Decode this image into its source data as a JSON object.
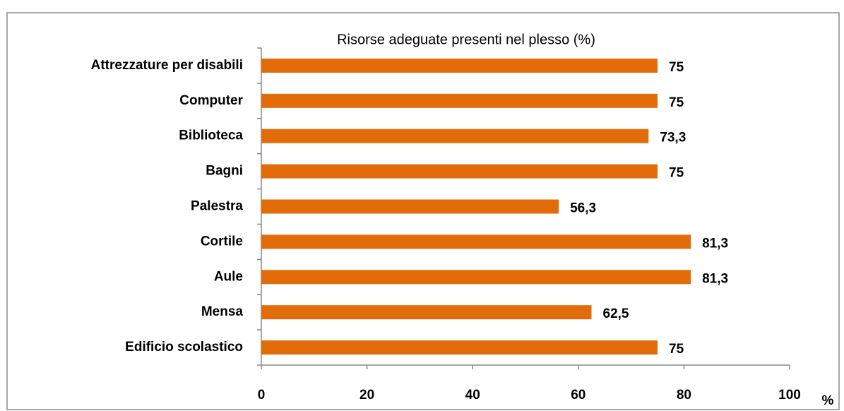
{
  "chart_data": {
    "type": "barh",
    "title": "Risorse adeguate presenti nel plesso  (%)",
    "categories": [
      "Attrezzature per disabili",
      "Computer",
      "Biblioteca",
      "Bagni",
      "Palestra",
      "Cortile",
      "Aule",
      "Mensa",
      "Edificio scolastico"
    ],
    "values": [
      75,
      75,
      73.3,
      75,
      56.3,
      81.3,
      81.3,
      62.5,
      75
    ],
    "value_labels": [
      "75",
      "75",
      "73,3",
      "75",
      "56,3",
      "81,3",
      "81,3",
      "62,5",
      "75"
    ],
    "color": "#e36c0a",
    "xlabel": "%",
    "xlim": [
      0,
      100
    ],
    "xticks": [
      0,
      20,
      40,
      60,
      80,
      100
    ],
    "grid": false
  }
}
